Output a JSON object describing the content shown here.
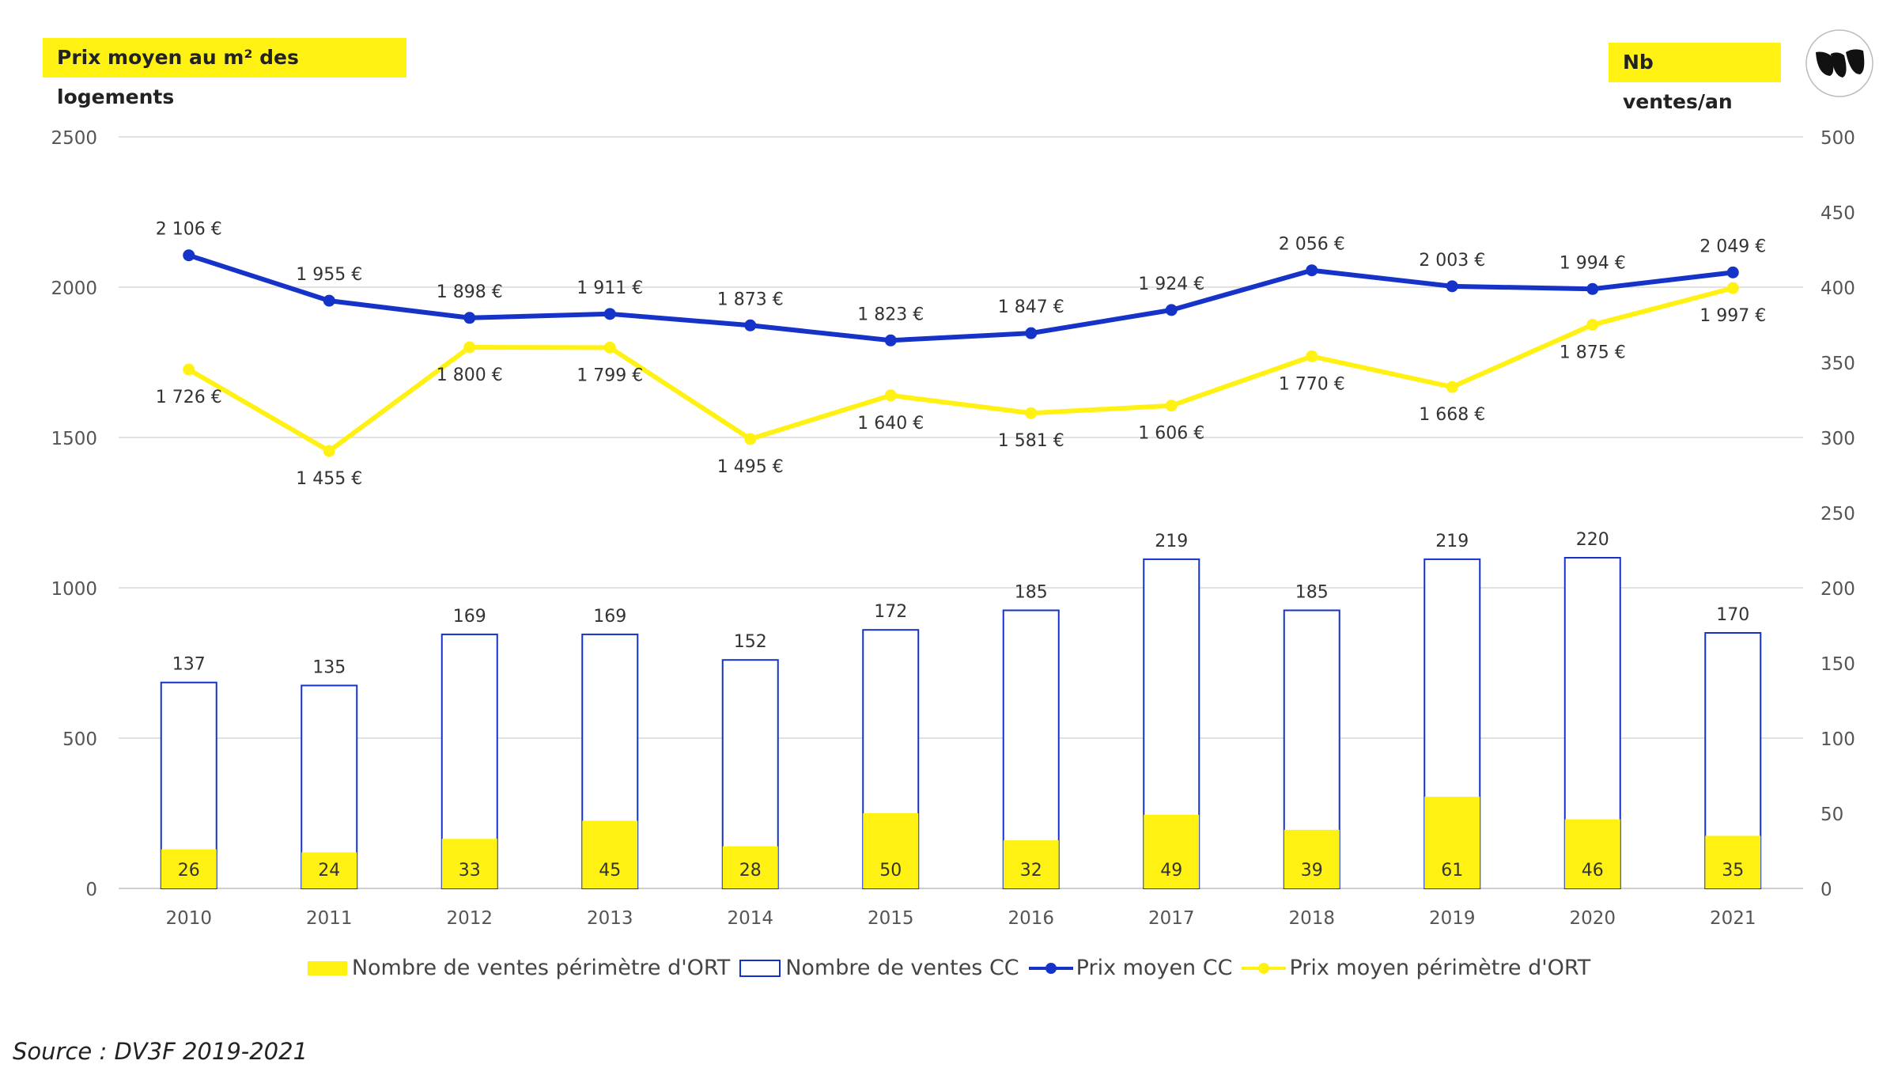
{
  "labels": {
    "left_title": "Prix moyen au m² des logements",
    "right_title": "Nb ventes/an",
    "source": "Source : DV3F 2019-2021"
  },
  "logo": {
    "name": "brand-logo"
  },
  "colors": {
    "blue": "#1533C8",
    "yellow": "#FFF212",
    "grid": "#D9D9D9"
  },
  "chart_data": {
    "type": "bar",
    "categories": [
      "2010",
      "2011",
      "2012",
      "2013",
      "2014",
      "2015",
      "2016",
      "2017",
      "2018",
      "2019",
      "2020",
      "2021"
    ],
    "axes": {
      "left": {
        "min": 0,
        "max": 2500,
        "ticks": [
          0,
          500,
          1000,
          1500,
          2000,
          2500
        ]
      },
      "right": {
        "min": 0,
        "max": 500,
        "ticks": [
          0,
          50,
          100,
          150,
          200,
          250,
          300,
          350,
          400,
          450,
          500
        ]
      }
    },
    "grid": true,
    "legend_position": "bottom",
    "series": [
      {
        "name": "Nombre de ventes périmètre d'ORT",
        "type": "bar",
        "axis": "right",
        "values": [
          26,
          24,
          33,
          45,
          28,
          50,
          32,
          49,
          39,
          61,
          46,
          35
        ],
        "labels": [
          "26",
          "24",
          "33",
          "45",
          "28",
          "50",
          "32",
          "49",
          "39",
          "61",
          "46",
          "35"
        ]
      },
      {
        "name": "Nombre de ventes CC",
        "type": "bar-outline",
        "axis": "right",
        "values": [
          137,
          135,
          169,
          169,
          152,
          172,
          185,
          219,
          185,
          219,
          220,
          170
        ],
        "labels": [
          "137",
          "135",
          "169",
          "169",
          "152",
          "172",
          "185",
          "219",
          "185",
          "219",
          "220",
          "170"
        ]
      },
      {
        "name": "Prix moyen CC",
        "type": "line",
        "axis": "left",
        "values": [
          2106,
          1955,
          1898,
          1911,
          1873,
          1823,
          1847,
          1924,
          2056,
          2003,
          1994,
          2049
        ],
        "labels": [
          "2 106 €",
          "1 955 €",
          "1 898 €",
          "1 911 €",
          "1 873 €",
          "1 823 €",
          "1 847 €",
          "1 924 €",
          "2 056 €",
          "2 003 €",
          "1 994 €",
          "2 049 €"
        ]
      },
      {
        "name": "Prix moyen périmètre d'ORT",
        "type": "line",
        "axis": "left",
        "values": [
          1726,
          1455,
          1800,
          1799,
          1495,
          1640,
          1581,
          1606,
          1770,
          1668,
          1875,
          1997
        ],
        "labels": [
          "1 726 €",
          "1 455 €",
          "1 800 €",
          "1 799 €",
          "1 495 €",
          "1 640 €",
          "1 581 €",
          "1 606 €",
          "1 770 €",
          "1 668 €",
          "1 875 €",
          "1 997 €"
        ]
      }
    ]
  }
}
